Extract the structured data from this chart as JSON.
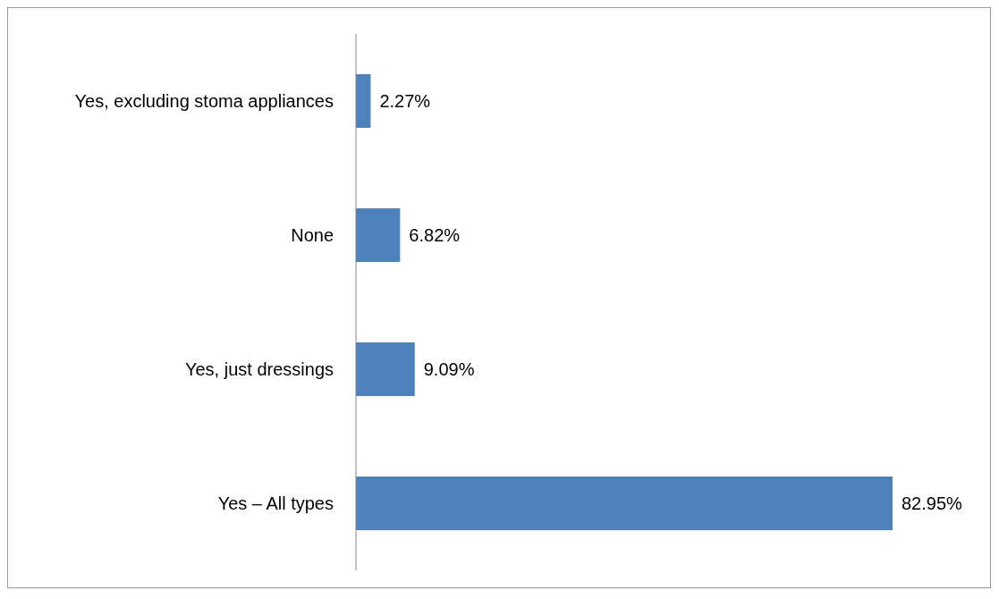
{
  "chart_data": {
    "type": "bar",
    "orientation": "horizontal",
    "categories": [
      "Yes, excluding stoma appliances",
      "None",
      "Yes, just dressings",
      "Yes – All types"
    ],
    "values": [
      2.27,
      6.82,
      9.09,
      82.95
    ],
    "color": "#4f81bd",
    "value_labels": [
      "2.27%",
      "6.82%",
      "9.09%",
      "82.95%"
    ],
    "tick_labels": "y"
  }
}
